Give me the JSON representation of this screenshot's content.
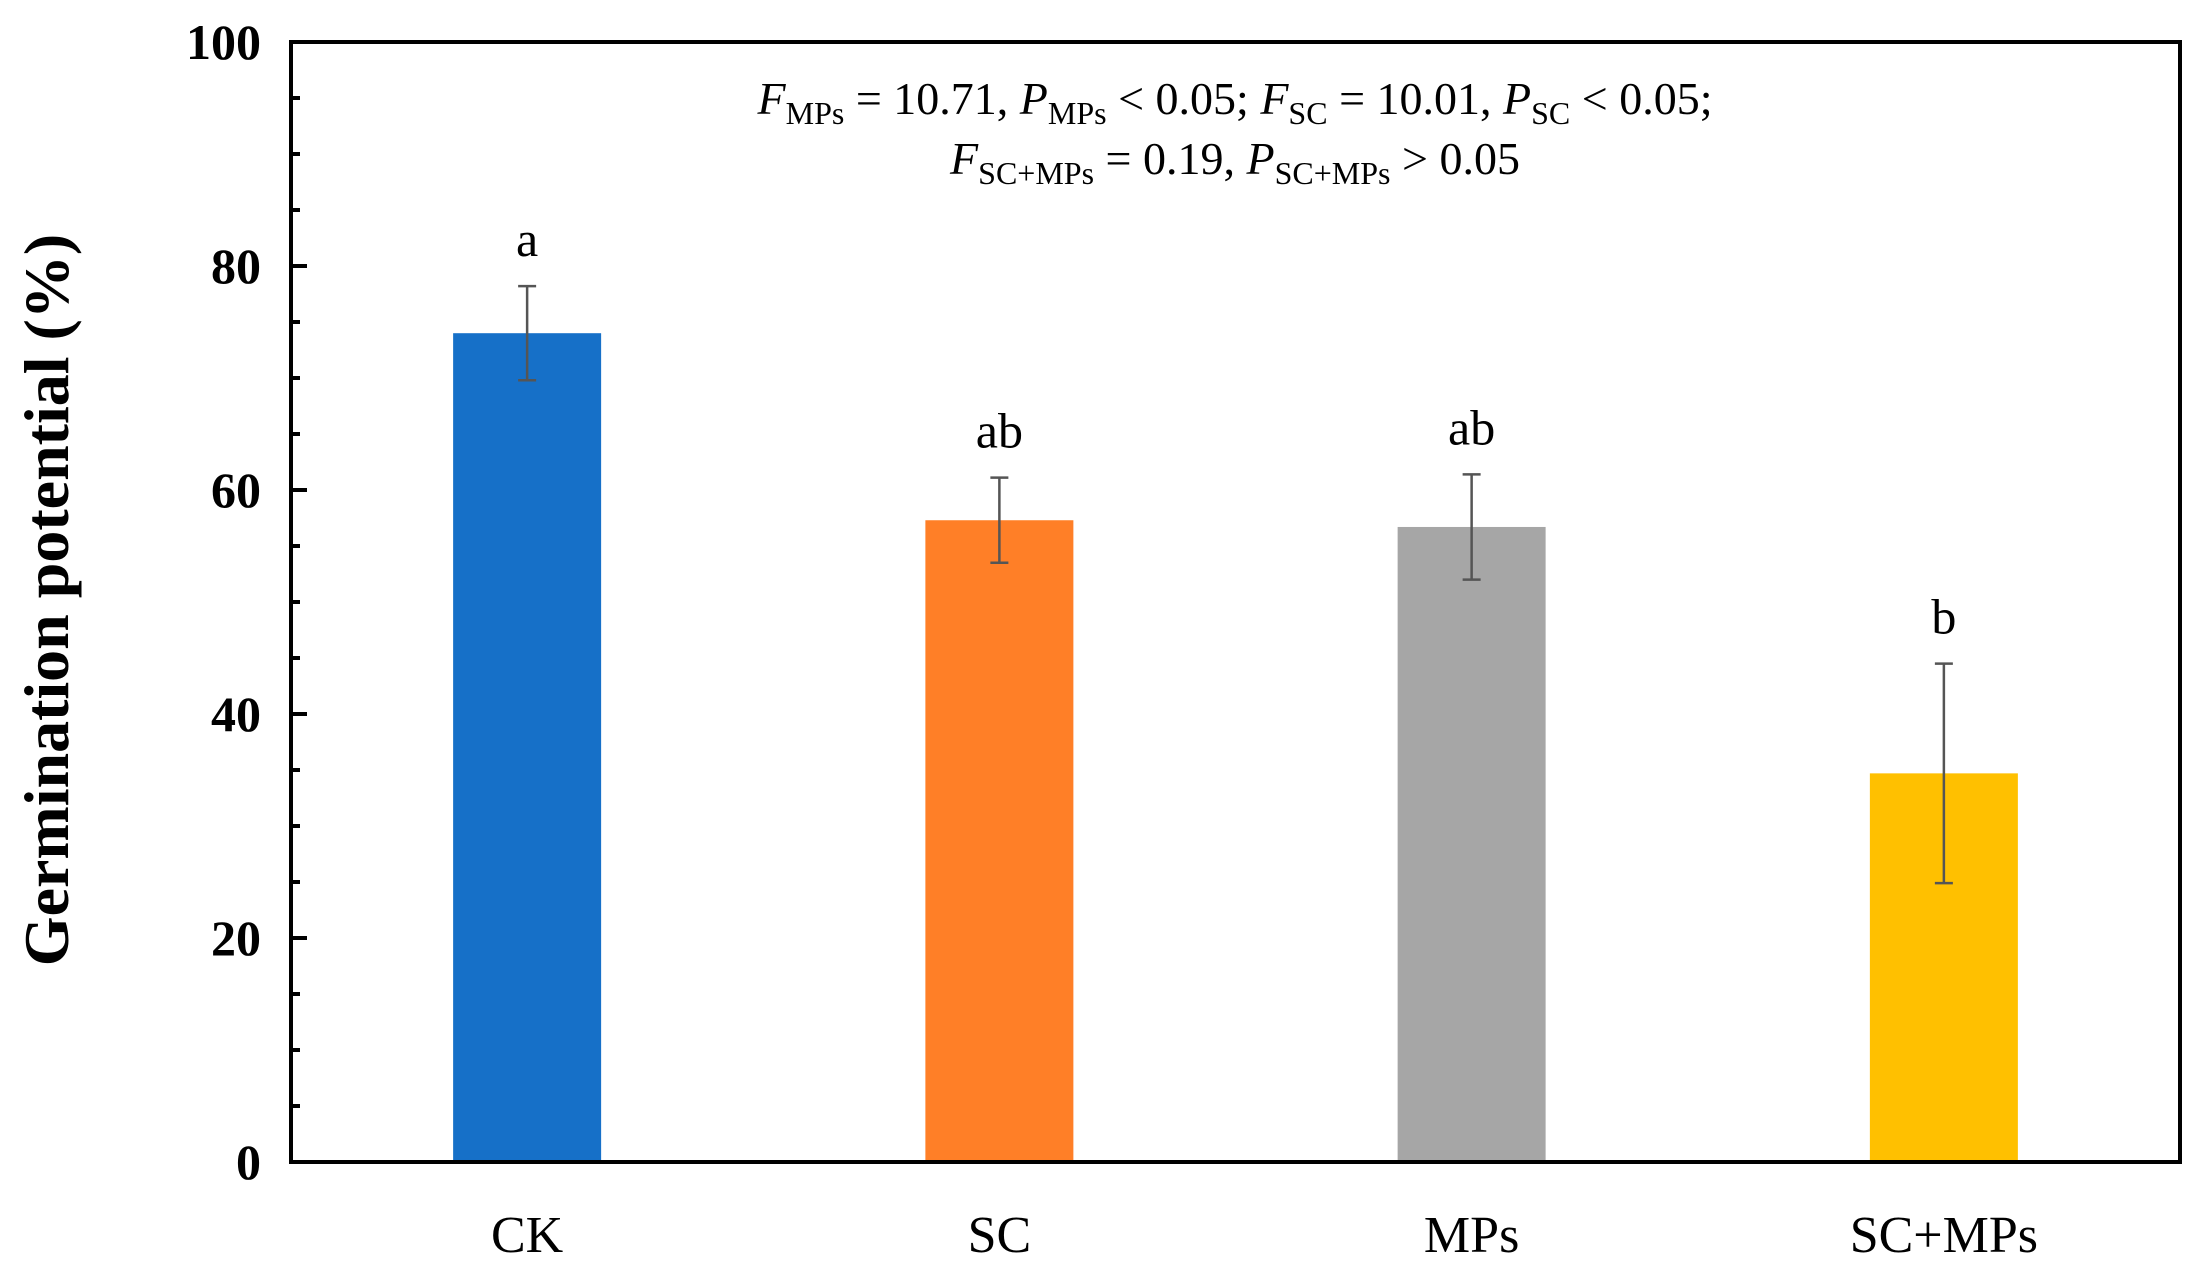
{
  "chart_data": {
    "type": "bar",
    "title": "",
    "xlabel": "",
    "ylabel": "Germination potential (%)",
    "ylim": [
      0,
      100
    ],
    "yticks": [
      0,
      20,
      40,
      60,
      80,
      100
    ],
    "ytick_labels": [
      "0",
      "20",
      "40",
      "60",
      "80",
      "100"
    ],
    "categories": [
      "CK",
      "SC",
      "MPs",
      "SC+MPs"
    ],
    "values": [
      74.0,
      57.3,
      56.7,
      34.7
    ],
    "errors": [
      4.2,
      3.8,
      4.7,
      9.8
    ],
    "colors": [
      "#1670C8",
      "#FF7F27",
      "#A6A6A6",
      "#FFC000"
    ],
    "significance_letters": [
      "a",
      "ab",
      "ab",
      "b"
    ],
    "grid": false,
    "legend": "none",
    "annotation": {
      "line1": {
        "f_mps_var": "F",
        "f_mps_sub": "MPs",
        "f_mps_val": " = 10.71, ",
        "p_mps_var": "P",
        "p_mps_sub": "MPs",
        "p_mps_val": " < 0.05; ",
        "f_sc_var": "F",
        "f_sc_sub": "SC",
        "f_sc_val": " = 10.01, ",
        "p_sc_var": "P",
        "p_sc_sub": "SC",
        "p_sc_val": " < 0.05;"
      },
      "line2": {
        "f_int_var": "F",
        "f_int_sub": "SC+MPs",
        "f_int_val": " = 0.19, ",
        "p_int_var": "P",
        "p_int_sub": "SC+MPs",
        "p_int_val": " > 0.05"
      }
    }
  }
}
